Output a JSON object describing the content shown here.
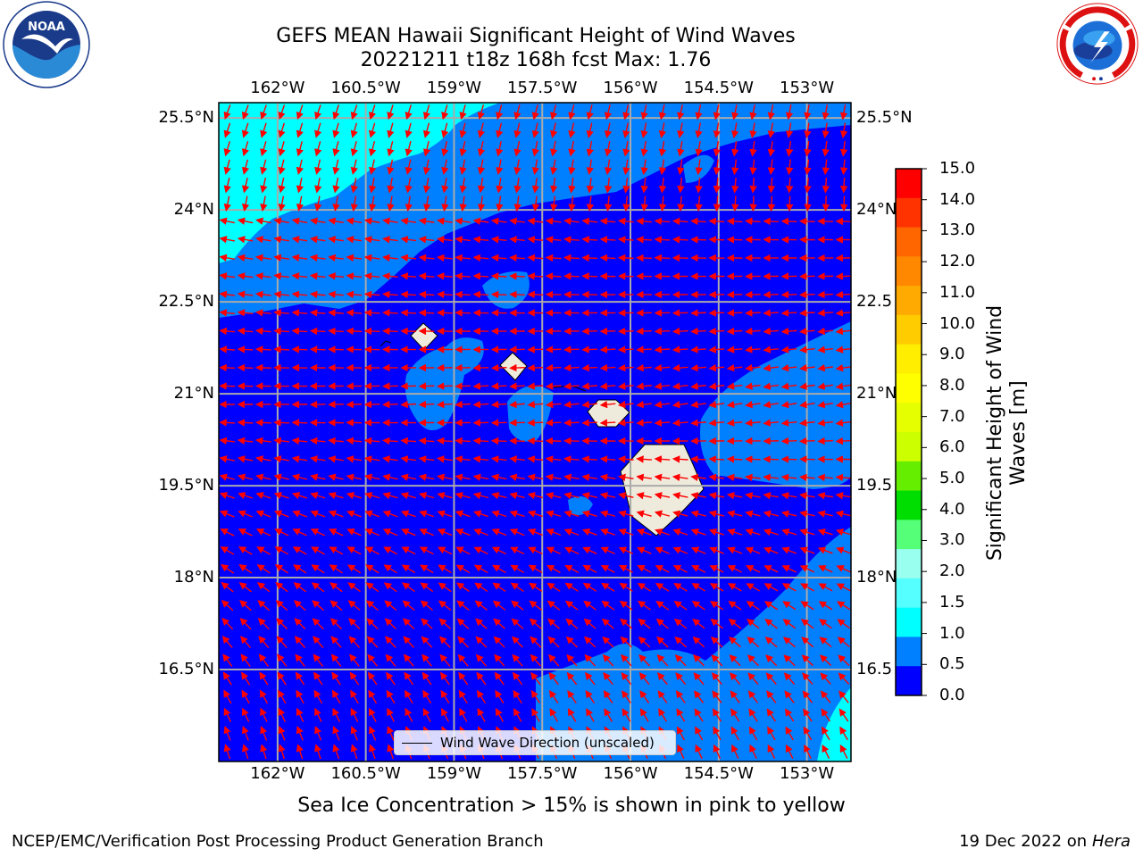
{
  "title": {
    "line1": "GEFS MEAN Hawaii Significant Height of Wind Waves",
    "line2": "20221211 t18z 168h fcst   Max: 1.76"
  },
  "map": {
    "lon_ticks": [
      "162°W",
      "160.5°W",
      "159°W",
      "157.5°W",
      "156°W",
      "154.5°W",
      "153°W"
    ],
    "lon_values": [
      -162,
      -160.5,
      -159,
      -157.5,
      -156,
      -154.5,
      -153
    ],
    "lat_ticks": [
      "25.5°N",
      "24°N",
      "22.5°N",
      "21°N",
      "19.5°N",
      "18°N",
      "16.5°N"
    ],
    "lat_ticks_right": [
      "25.5°N",
      "24°N",
      "22.5",
      "21°N",
      "19.5",
      "18°N",
      "16.5"
    ],
    "lat_values": [
      25.5,
      24,
      22.5,
      21,
      19.5,
      18,
      16.5
    ],
    "extent": {
      "lon_min": -163,
      "lon_max": -152.25,
      "lat_min": 15,
      "lat_max": 25.75
    },
    "arrow_color": "#ff0000",
    "land_color": "#efebdc",
    "ocean_colors": {
      "low": "#0000ff",
      "mid": "#0080ff",
      "high": "#00ffff"
    },
    "legend": {
      "label": "Wind Wave Direction (unscaled)"
    }
  },
  "colorbar": {
    "title": "Significant Height of Wind Waves [m]",
    "title_line1": "Significant Height of Wind",
    "title_line2": "Waves [m]",
    "ticks": [
      "15.0",
      "14.0",
      "13.0",
      "12.0",
      "11.0",
      "10.0",
      "9.0",
      "8.0",
      "7.0",
      "6.0",
      "5.0",
      "4.0",
      "3.0",
      "2.0",
      "1.5",
      "1.0",
      "0.5",
      "0.0"
    ],
    "colors": [
      "#ff0000",
      "#ff3300",
      "#ff6600",
      "#ff8800",
      "#ffaa00",
      "#ffcc00",
      "#ffee00",
      "#ffff00",
      "#e6ff00",
      "#ccff00",
      "#66ee00",
      "#00dd00",
      "#55ff77",
      "#99ffee",
      "#55ffff",
      "#00ffff",
      "#0080ff",
      "#0000ff"
    ]
  },
  "footnote": "Sea Ice Concentration > 15% is shown in pink to yellow",
  "credit": "NCEP/EMC/Verification Post Processing Product Generation Branch",
  "run_date": {
    "date": "19 Dec 2022 on",
    "host": "Hera"
  },
  "logos": {
    "noaa": {
      "text": "NOAA",
      "ring_text": "NATIONAL OCEANIC AND ATMOSPHERIC ADMINISTRATION · U.S. DEPARTMENT OF COMMERCE"
    },
    "nws": {
      "ring_text": "NATIONAL WEATHER SERVICE"
    }
  }
}
